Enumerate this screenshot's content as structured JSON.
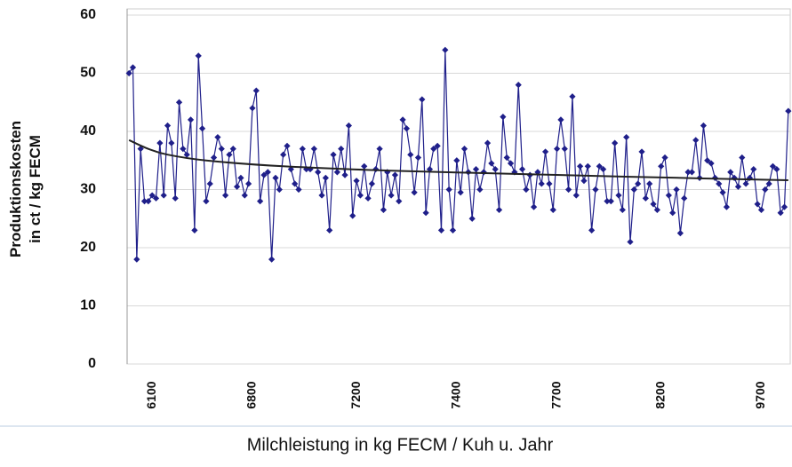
{
  "chart_data": {
    "type": "line",
    "y_label": "Produktionskosten\nin ct / kg FECM",
    "x_label": "Milchleistung in kg FECM / Kuh u. Jahr",
    "categories": [
      null,
      null,
      null,
      null,
      null,
      null,
      "6100",
      null,
      null,
      null,
      null,
      null,
      null,
      null,
      null,
      null,
      null,
      null,
      null,
      null,
      null,
      null,
      null,
      null,
      null,
      null,
      null,
      null,
      null,
      null,
      null,
      null,
      "6800",
      null,
      null,
      null,
      null,
      null,
      null,
      null,
      null,
      null,
      null,
      null,
      null,
      null,
      null,
      null,
      null,
      null,
      null,
      null,
      null,
      null,
      null,
      null,
      null,
      null,
      null,
      "7200",
      null,
      null,
      null,
      null,
      null,
      null,
      null,
      null,
      null,
      null,
      null,
      null,
      null,
      null,
      null,
      null,
      null,
      null,
      null,
      null,
      null,
      null,
      null,
      null,
      null,
      "7400",
      null,
      null,
      null,
      null,
      null,
      null,
      null,
      null,
      null,
      null,
      null,
      null,
      null,
      null,
      null,
      null,
      null,
      null,
      null,
      null,
      null,
      null,
      null,
      null,
      null,
      "7700",
      null,
      null,
      null,
      null,
      null,
      null,
      null,
      null,
      null,
      null,
      null,
      null,
      null,
      null,
      null,
      null,
      null,
      null,
      null,
      null,
      null,
      null,
      null,
      null,
      null,
      null,
      "8200",
      null,
      null,
      null,
      null,
      null,
      null,
      null,
      null,
      null,
      null,
      null,
      null,
      null,
      null,
      null,
      null,
      null,
      null,
      null,
      null,
      null,
      null,
      null,
      null,
      null,
      "9700",
      null,
      null,
      null,
      null,
      null,
      null,
      null
    ],
    "series": [
      {
        "color": "#1f1f8a",
        "values": [
          50,
          51,
          18,
          37,
          28,
          28,
          29,
          28.5,
          38,
          29,
          41,
          38,
          28.5,
          45,
          37,
          36,
          42,
          23,
          53,
          40.5,
          28,
          31,
          35.5,
          39,
          37,
          29,
          36,
          37,
          30.5,
          32,
          29,
          31,
          44,
          47,
          28,
          32.5,
          33,
          18,
          32,
          30,
          36,
          37.5,
          33.5,
          31,
          30,
          37,
          33.5,
          33.5,
          37,
          33,
          29,
          32,
          23,
          36,
          33,
          37,
          32.5,
          41,
          25.5,
          31.5,
          29,
          34,
          28.5,
          31,
          33.5,
          37,
          26.5,
          33,
          29,
          32.5,
          28,
          42,
          40.5,
          36,
          29.5,
          35.5,
          45.5,
          26,
          33.5,
          37,
          37.5,
          23,
          54,
          30,
          23,
          35,
          29.5,
          37,
          33,
          25,
          33.5,
          30,
          33,
          38,
          34.5,
          33.5,
          26.5,
          42.5,
          35.5,
          34.5,
          33,
          48,
          33.5,
          30,
          32.5,
          27,
          33,
          31,
          36.5,
          31,
          26.5,
          37,
          42,
          37,
          30,
          46,
          29,
          34,
          31.5,
          34,
          23,
          30,
          34,
          33.5,
          28,
          28,
          38,
          29,
          26.5,
          39,
          21,
          30,
          31,
          36.5,
          28.5,
          31,
          27.5,
          26.5,
          34,
          35.5,
          29,
          26,
          30,
          22.5,
          28.5,
          33,
          33,
          38.5,
          32,
          41,
          35,
          34.5,
          32,
          31,
          29.5,
          27,
          33,
          32,
          30.5,
          35.5,
          31,
          32,
          33.5,
          27.5,
          26.5,
          30,
          31,
          34,
          33.5,
          26,
          27,
          43.5
        ]
      }
    ],
    "trendline": {
      "color": "#222222",
      "x": [
        0,
        5,
        10,
        20,
        40,
        70,
        100,
        130,
        171
      ],
      "values": [
        38.5,
        37,
        36,
        35,
        34,
        33.2,
        32.7,
        32.2,
        31.6
      ]
    },
    "ylim": [
      0,
      60
    ],
    "yticks": [
      0,
      10,
      20,
      30,
      40,
      50,
      60
    ],
    "grid": true
  }
}
